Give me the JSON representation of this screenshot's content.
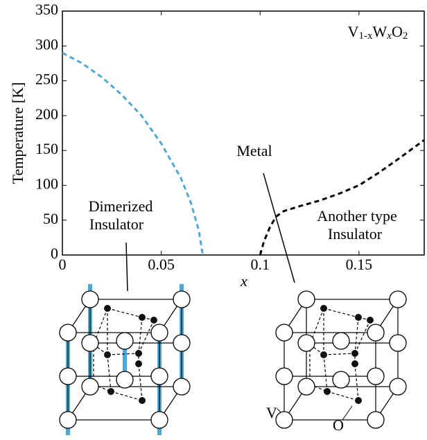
{
  "chart_data": {
    "type": "line",
    "title_parts": [
      "V",
      "1-x",
      "W",
      "x",
      "O",
      "2"
    ],
    "x_label": "x",
    "y_label": "Temperature [K]",
    "xlim": [
      0,
      0.183
    ],
    "xticks": [
      0,
      0.05,
      0.1,
      0.15
    ],
    "ylim": [
      0,
      350
    ],
    "yticks": [
      0,
      50,
      100,
      150,
      200,
      250,
      300,
      350
    ],
    "series": [
      {
        "color": "#4fa7d4",
        "x": [
          0,
          0.01,
          0.02,
          0.03,
          0.04,
          0.05,
          0.06,
          0.065,
          0.069,
          0.071
        ],
        "values": [
          290,
          275,
          255,
          230,
          200,
          160,
          110,
          75,
          35,
          0
        ]
      },
      {
        "color": "#000000",
        "x": [
          0.1,
          0.102,
          0.105,
          0.108,
          0.112,
          0.12,
          0.13,
          0.14,
          0.15,
          0.16,
          0.17,
          0.183
        ],
        "values": [
          0,
          20,
          40,
          55,
          63,
          70,
          78,
          88,
          100,
          118,
          138,
          165
        ]
      }
    ],
    "annotations": {
      "metal": "Metal",
      "dimerized": [
        "Dimerized",
        "Insulator"
      ],
      "another": [
        "Another type",
        "Insulator"
      ],
      "v_site": "V",
      "o_site": "O"
    }
  }
}
